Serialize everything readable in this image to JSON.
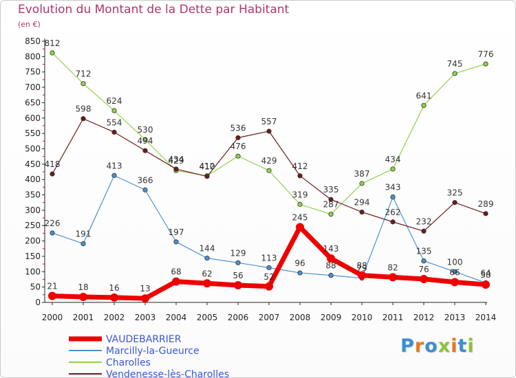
{
  "title": "Evolution du Montant de la Dette par Habitant",
  "unit_label": "(en €)",
  "logo_text": "Proxiti",
  "logo_colors": [
    "#3b8fd0",
    "#e8781e",
    "#3b8fd0",
    "#8fc13a",
    "#e8781e",
    "#3b8fd0",
    "#8fc13a"
  ],
  "chart_data": {
    "type": "line",
    "title": "Evolution du Montant de la Dette par Habitant",
    "ylabel": "(en €)",
    "xlabel": "",
    "ylim": [
      0,
      850
    ],
    "y_ticks": [
      0,
      50,
      100,
      150,
      200,
      250,
      300,
      350,
      400,
      450,
      500,
      550,
      600,
      650,
      700,
      750,
      800,
      850
    ],
    "grid": false,
    "legend_position": "bottom-left",
    "x": [
      "2000",
      "2001",
      "2002",
      "2003",
      "2004",
      "2005",
      "2006",
      "2007",
      "2008",
      "2009",
      "2010",
      "2011",
      "2012",
      "2013",
      "2014"
    ],
    "series": [
      {
        "name": "VAUDEBARRIER",
        "color": "#ee0000",
        "emphasis": true,
        "values": [
          21,
          18,
          16,
          13,
          68,
          62,
          56,
          52,
          245,
          143,
          88,
          82,
          76,
          66,
          58
        ]
      },
      {
        "name": "Marcilly-la-Gueurce",
        "color": "#4a90d0",
        "emphasis": false,
        "values": [
          226,
          191,
          413,
          366,
          197,
          144,
          129,
          113,
          96,
          88,
          79,
          343,
          135,
          100,
          64
        ]
      },
      {
        "name": "Charolles",
        "color": "#8ed34b",
        "emphasis": false,
        "values": [
          812,
          712,
          624,
          530,
          429,
          412,
          476,
          429,
          319,
          287,
          387,
          434,
          641,
          745,
          776
        ]
      },
      {
        "name": "Vendenesse-lès-Charolles",
        "color": "#6e1b1b",
        "emphasis": false,
        "values": [
          418,
          598,
          554,
          494,
          434,
          410,
          536,
          557,
          412,
          335,
          294,
          262,
          232,
          325,
          289
        ]
      }
    ]
  }
}
